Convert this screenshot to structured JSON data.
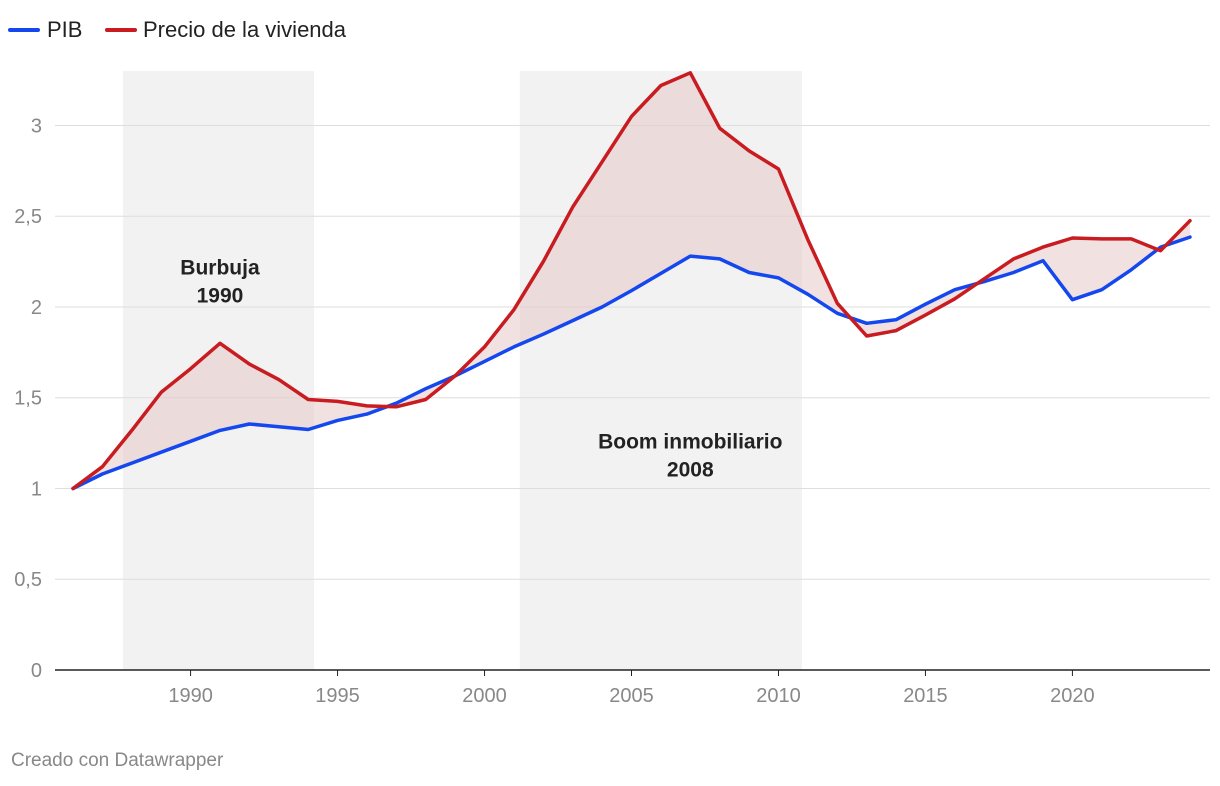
{
  "chart_data": {
    "type": "line",
    "title": "",
    "xlabel": "",
    "ylabel": "",
    "xlim": [
      1986,
      2024
    ],
    "ylim": [
      0,
      3.3
    ],
    "x_ticks": [
      1990,
      1995,
      2000,
      2005,
      2010,
      2015,
      2020
    ],
    "x_tick_labels": [
      "1990",
      "1995",
      "2000",
      "2005",
      "2010",
      "2015",
      "2020"
    ],
    "y_ticks": [
      0,
      0.5,
      1,
      1.5,
      2,
      2.5,
      3
    ],
    "y_tick_labels": [
      "0",
      "0,5",
      "1",
      "1,5",
      "2",
      "2,5",
      "3"
    ],
    "grid": true,
    "legend_position": "top-left",
    "x": [
      1986,
      1987,
      1988,
      1989,
      1990,
      1991,
      1992,
      1993,
      1994,
      1995,
      1996,
      1997,
      1998,
      1999,
      2000,
      2001,
      2002,
      2003,
      2004,
      2005,
      2006,
      2007,
      2008,
      2009,
      2010,
      2011,
      2012,
      2013,
      2014,
      2015,
      2016,
      2017,
      2018,
      2019,
      2020,
      2021,
      2022,
      2023,
      2024
    ],
    "series": [
      {
        "name": "PIB",
        "color": "#1448ee",
        "values": [
          1.0,
          1.08,
          1.14,
          1.2,
          1.26,
          1.32,
          1.355,
          1.34,
          1.325,
          1.375,
          1.41,
          1.47,
          1.55,
          1.62,
          1.7,
          1.78,
          1.85,
          1.925,
          2.0,
          2.09,
          2.185,
          2.28,
          2.265,
          2.19,
          2.16,
          2.07,
          1.965,
          1.91,
          1.93,
          2.015,
          2.095,
          2.14,
          2.19,
          2.255,
          2.04,
          2.095,
          2.205,
          2.33,
          2.385
        ]
      },
      {
        "name": "Precio de la vivienda",
        "color": "#c81c21",
        "values": [
          1.0,
          1.12,
          1.32,
          1.53,
          1.66,
          1.8,
          1.685,
          1.6,
          1.49,
          1.48,
          1.455,
          1.45,
          1.49,
          1.62,
          1.78,
          1.985,
          2.25,
          2.55,
          2.8,
          3.05,
          3.22,
          3.29,
          2.985,
          2.86,
          2.76,
          2.37,
          2.02,
          1.84,
          1.87,
          1.955,
          2.045,
          2.155,
          2.265,
          2.33,
          2.38,
          2.375,
          2.375,
          2.31,
          2.475
        ]
      }
    ],
    "fill_between": {
      "color": "#e8c8c8",
      "opacity": 0.55
    },
    "shaded_periods": [
      {
        "start": 1987.7,
        "end": 1994.2,
        "label_lines": [
          "Burbuja",
          "1990"
        ],
        "label_x": 1991,
        "label_y": 2.18
      },
      {
        "start": 2001.2,
        "end": 2010.8,
        "label_lines": [
          "Boom inmobiliario",
          "2008"
        ],
        "label_x": 2007,
        "label_y": 1.22
      }
    ]
  },
  "footer": {
    "credit": "Creado con Datawrapper"
  }
}
